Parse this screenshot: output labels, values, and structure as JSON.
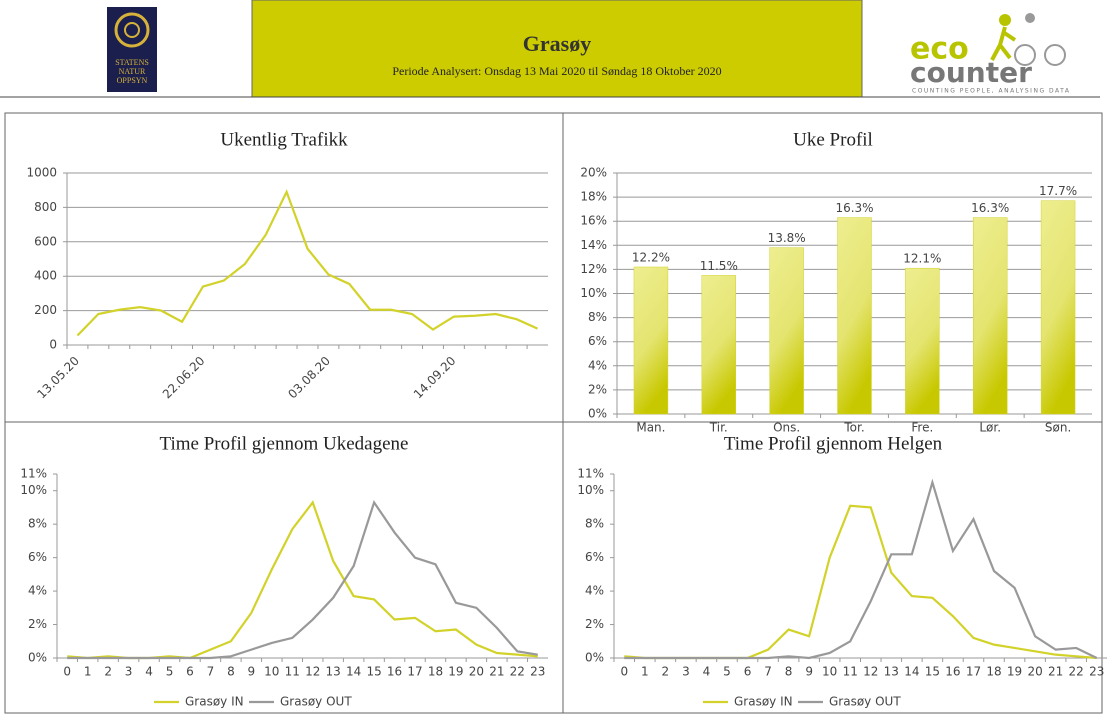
{
  "header": {
    "title": "Grasøy",
    "subtitle": "Periode Analysert: Onsdag 13 Mai 2020 til Søndag 18 Oktober 2020",
    "left_logo": [
      "STATENS",
      "NATUR",
      "OPPSYN"
    ],
    "right_logo": {
      "name": [
        "eco",
        "counter"
      ],
      "tagline": "COUNTING PEOPLE, ANALYSING DATA"
    }
  },
  "chart_data": [
    {
      "type": "line",
      "title": "Ukentlig Trafikk",
      "categories": [
        "13.05.20",
        null,
        null,
        null,
        null,
        null,
        "22.06.20",
        null,
        null,
        null,
        null,
        null,
        "03.08.20",
        null,
        null,
        null,
        null,
        null,
        "14.09.20",
        null,
        null,
        null,
        null
      ],
      "values": [
        55,
        180,
        205,
        220,
        200,
        135,
        340,
        375,
        470,
        640,
        890,
        560,
        410,
        355,
        205,
        205,
        180,
        90,
        165,
        170,
        180,
        150,
        95
      ],
      "color": "#d2d22a",
      "ylim": [
        0,
        1000
      ],
      "yticks": [
        0,
        200,
        400,
        600,
        800,
        1000
      ],
      "grid": true
    },
    {
      "type": "bar",
      "title": "Uke Profil",
      "categories": [
        "Man.",
        "Tir.",
        "Ons.",
        "Tor.",
        "Fre.",
        "Lør.",
        "Søn."
      ],
      "values": [
        12.2,
        11.5,
        13.8,
        16.3,
        12.1,
        16.3,
        17.7
      ],
      "value_labels": [
        "12.2%",
        "11.5%",
        "13.8%",
        "16.3%",
        "12.1%",
        "16.3%",
        "17.7%"
      ],
      "color": "#d2d22a",
      "ylim": [
        0,
        20
      ],
      "yticks": [
        {
          "value": 0,
          "label": "0%"
        },
        {
          "value": 2,
          "label": "2%"
        },
        {
          "value": 4,
          "label": "4%"
        },
        {
          "value": 6,
          "label": "6%"
        },
        {
          "value": 8,
          "label": "8%"
        },
        {
          "value": 10,
          "label": "10%"
        },
        {
          "value": 12,
          "label": "12%"
        },
        {
          "value": 14,
          "label": "14%"
        },
        {
          "value": 16,
          "label": "16%"
        },
        {
          "value": 18,
          "label": "18%"
        },
        {
          "value": 20,
          "label": "20%"
        }
      ],
      "grid": true
    },
    {
      "type": "line",
      "title": "Time Profil gjennom Ukedagene",
      "categories": [
        "0",
        "1",
        "2",
        "3",
        "4",
        "5",
        "6",
        "7",
        "8",
        "9",
        "10",
        "11",
        "12",
        "13",
        "14",
        "15",
        "16",
        "17",
        "18",
        "19",
        "20",
        "21",
        "22",
        "23"
      ],
      "series": [
        {
          "name": "Grasøy IN",
          "color": "#d2d22a",
          "values": [
            0.1,
            0,
            0.1,
            0,
            0,
            0.1,
            0,
            0.5,
            1.0,
            2.7,
            5.3,
            7.7,
            9.3,
            5.8,
            3.7,
            3.5,
            2.3,
            2.4,
            1.6,
            1.7,
            0.8,
            0.3,
            0.2,
            0.1
          ]
        },
        {
          "name": "Grasøy OUT",
          "color": "#999999",
          "values": [
            0,
            0,
            0,
            0,
            0,
            0,
            0,
            0,
            0.1,
            0.5,
            0.9,
            1.2,
            2.3,
            3.6,
            5.5,
            9.3,
            7.5,
            6.0,
            5.6,
            3.3,
            3.0,
            1.8,
            0.4,
            0.2
          ]
        }
      ],
      "ylim": [
        0,
        11
      ],
      "yticks": [
        {
          "value": 0,
          "label": "0%"
        },
        {
          "value": 2,
          "label": "2%"
        },
        {
          "value": 4,
          "label": "4%"
        },
        {
          "value": 6,
          "label": "6%"
        },
        {
          "value": 8,
          "label": "8%"
        },
        {
          "value": 10,
          "label": "10%"
        },
        {
          "value": 11,
          "label": "11%"
        }
      ],
      "grid": false,
      "legend": "bottom"
    },
    {
      "type": "line",
      "title": "Time Profil gjennom Helgen",
      "categories": [
        "0",
        "1",
        "2",
        "3",
        "4",
        "5",
        "6",
        "7",
        "8",
        "9",
        "10",
        "11",
        "12",
        "13",
        "14",
        "15",
        "16",
        "17",
        "18",
        "19",
        "20",
        "21",
        "22",
        "23"
      ],
      "series": [
        {
          "name": "Grasøy IN",
          "color": "#d2d22a",
          "values": [
            0.1,
            0,
            0,
            0,
            0,
            0,
            0,
            0.5,
            1.7,
            1.3,
            6.0,
            9.1,
            9.0,
            5.1,
            3.7,
            3.6,
            2.5,
            1.2,
            0.8,
            0.6,
            0.4,
            0.2,
            0.1,
            0
          ]
        },
        {
          "name": "Grasøy OUT",
          "color": "#999999",
          "values": [
            0,
            0,
            0,
            0,
            0,
            0,
            0,
            0,
            0.1,
            0,
            0.3,
            1.0,
            3.4,
            6.2,
            6.2,
            10.5,
            6.4,
            8.3,
            5.2,
            4.2,
            1.3,
            0.5,
            0.6,
            0
          ]
        }
      ],
      "ylim": [
        0,
        11
      ],
      "yticks": [
        {
          "value": 0,
          "label": "0%"
        },
        {
          "value": 2,
          "label": "2%"
        },
        {
          "value": 4,
          "label": "4%"
        },
        {
          "value": 6,
          "label": "6%"
        },
        {
          "value": 8,
          "label": "8%"
        },
        {
          "value": 10,
          "label": "10%"
        },
        {
          "value": 11,
          "label": "11%"
        }
      ],
      "grid": false,
      "legend": "bottom"
    }
  ]
}
